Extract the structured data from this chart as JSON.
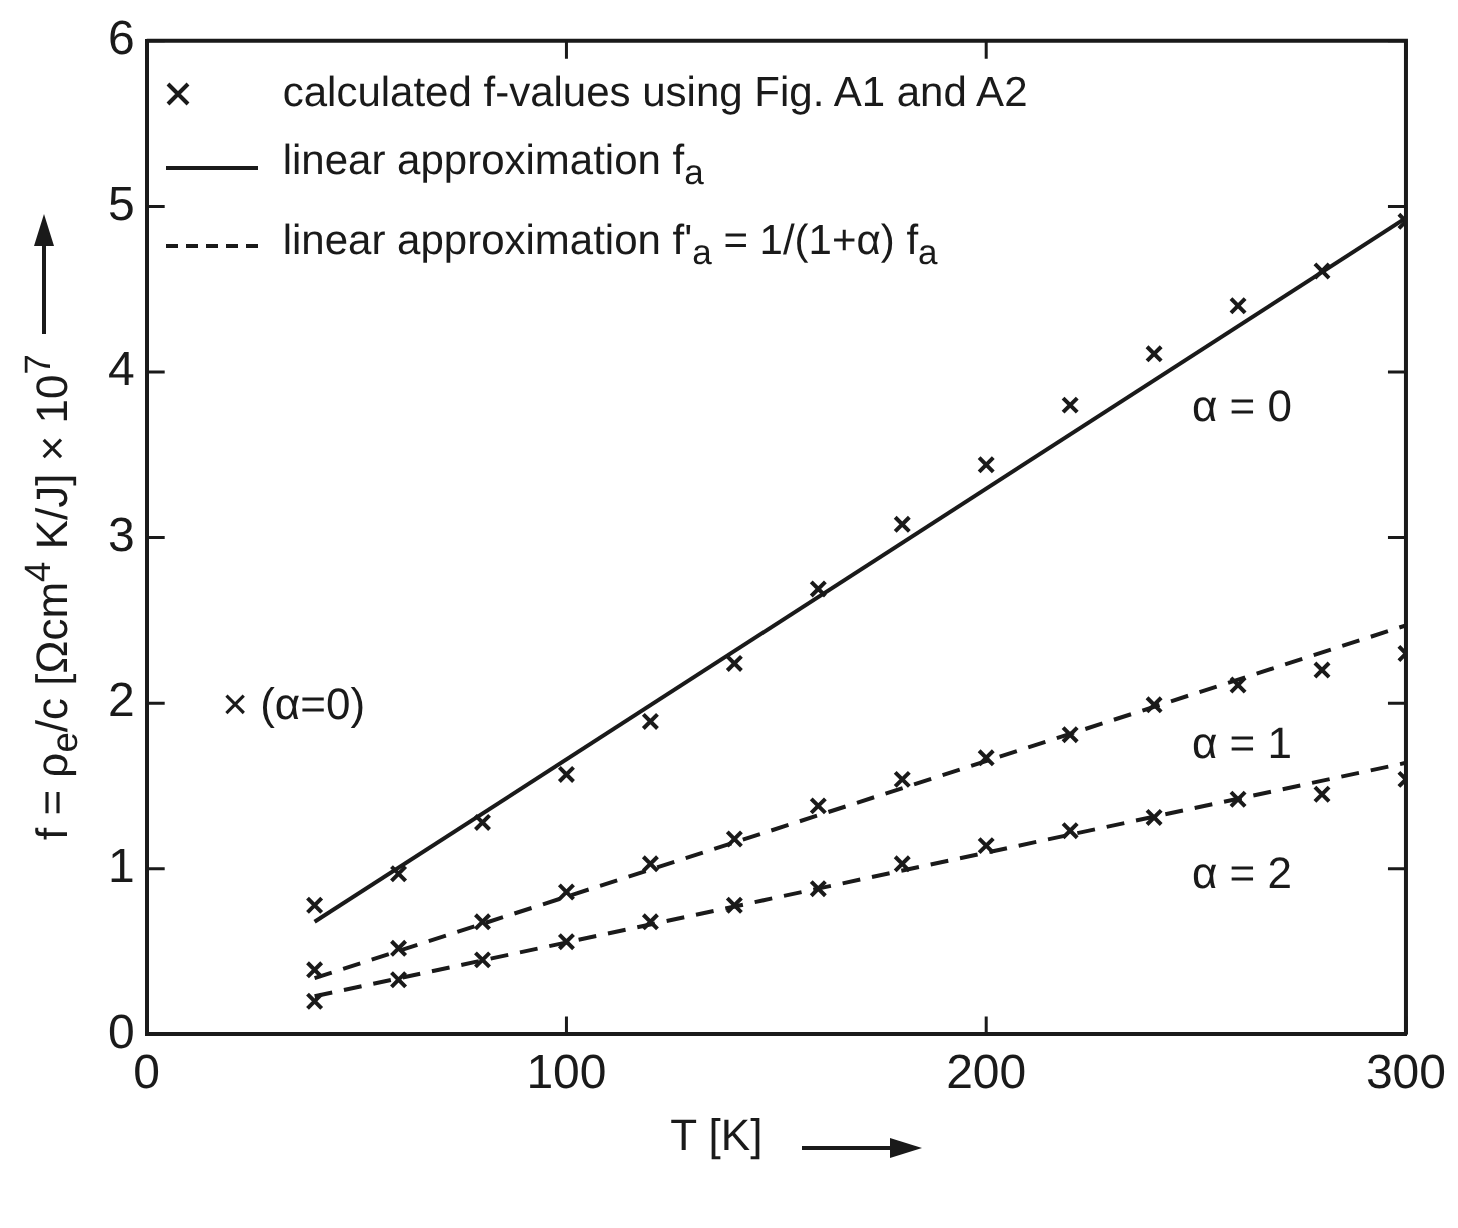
{
  "chart_data": {
    "type": "scatter",
    "xlabel": "T [K]",
    "ylabel": "f = ρ$_{e}$/c [Ωcm$^{4}$ K/J] × 10$^{7}$",
    "xlim": [
      0,
      300
    ],
    "xticks": [
      0,
      100,
      200,
      300
    ],
    "ylim": [
      0,
      6
    ],
    "yticks": [
      0,
      1,
      2,
      3,
      4,
      5,
      6
    ],
    "grid": false,
    "legend": "top left",
    "annotations": [
      "α = 0",
      "α = 1",
      "α = 2",
      "× (α=0)"
    ],
    "series": [
      {
        "name": "calculated f-values using Fig. A1 and A2",
        "marker": "cross",
        "color": "#1a1a1a",
        "x": [
          40,
          60,
          80,
          100,
          120,
          140,
          160,
          180,
          200,
          220,
          240,
          260,
          280,
          300
        ],
        "values": [
          0.78,
          0.97,
          1.28,
          1.57,
          1.89,
          2.24,
          2.69,
          3.08,
          3.44,
          3.8,
          4.11,
          4.4,
          4.61,
          4.91
        ]
      },
      {
        "marker": "cross",
        "color": "#1a1a1a",
        "x": [
          40,
          60,
          80,
          100,
          120,
          140,
          160,
          180,
          200,
          220,
          240,
          260,
          280,
          300
        ],
        "values": [
          0.39,
          0.52,
          0.68,
          0.86,
          1.03,
          1.18,
          1.38,
          1.54,
          1.67,
          1.81,
          1.99,
          2.11,
          2.2,
          2.3
        ]
      },
      {
        "marker": "cross",
        "color": "#1a1a1a",
        "x": [
          40,
          60,
          80,
          100,
          120,
          140,
          160,
          180,
          200,
          220,
          240,
          260,
          280,
          300
        ],
        "values": [
          0.2,
          0.33,
          0.45,
          0.56,
          0.68,
          0.78,
          0.88,
          1.03,
          1.14,
          1.23,
          1.31,
          1.42,
          1.45,
          1.54
        ]
      },
      {
        "type": "line",
        "name": "linear approximation f$_{a}$",
        "marker": "none",
        "color": "#1a1a1a",
        "line_style": "solid",
        "x": [
          40,
          300
        ],
        "values": [
          0.68,
          4.93
        ]
      },
      {
        "type": "line",
        "name": "linear approximation f'$_{a}$ = 1/(1+α) f$_{a}$",
        "marker": "none",
        "color": "#1a1a1a",
        "line_style": "dashed",
        "x": [
          40,
          300
        ],
        "values": [
          0.34,
          2.47
        ]
      },
      {
        "type": "line",
        "marker": "none",
        "color": "#1a1a1a",
        "line_style": "dashed",
        "x": [
          40,
          300
        ],
        "values": [
          0.23,
          1.64
        ]
      }
    ]
  }
}
